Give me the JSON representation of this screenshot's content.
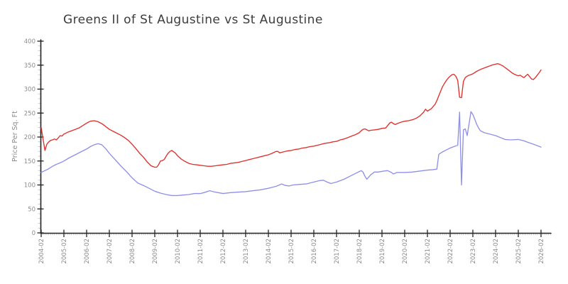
{
  "title": "Greens II of St Augustine vs St Augustine",
  "colors": {
    "background": "#ffffff",
    "axis": "#222222",
    "tick_label": "#8c8c8c",
    "minor_tick": "#c2c2c2",
    "title": "#3c3c3c",
    "red_series": "#e0302d",
    "blue_series": "#8f90e8"
  },
  "chart_data": {
    "type": "line",
    "title": "Greens II of St Augustine vs St Augustine",
    "xlabel": "",
    "ylabel": "Price Per Sq. Ft",
    "grid": false,
    "legend": "none",
    "style": "xkcd-sketch",
    "ylim": [
      0,
      400
    ],
    "y_ticks": [
      0,
      50,
      100,
      150,
      200,
      250,
      300,
      350,
      400
    ],
    "x_unit": "months since 2004-02",
    "x_tick_interval_months": 12,
    "x_tick_labels": [
      "2004-02",
      "2005-02",
      "2006-02",
      "2007-02",
      "2008-02",
      "2009-02",
      "2010-02",
      "2011-02",
      "2012-02",
      "2013-02",
      "2014-02",
      "2015-02",
      "2016-02",
      "2017-02",
      "2018-02",
      "2019-02",
      "2020-02",
      "2021-02",
      "2022-02",
      "2023-02",
      "2024-02",
      "2025-02",
      "2026-02"
    ],
    "series": [
      {
        "name": "red",
        "color": "#e0302d",
        "points": [
          [
            0,
            220
          ],
          [
            1,
            195
          ],
          [
            2,
            172
          ],
          [
            3,
            185
          ],
          [
            4,
            190
          ],
          [
            5,
            193
          ],
          [
            6,
            194
          ],
          [
            7,
            196
          ],
          [
            8,
            194
          ],
          [
            9,
            198
          ],
          [
            10,
            203
          ],
          [
            11,
            202
          ],
          [
            12,
            206
          ],
          [
            14,
            210
          ],
          [
            16,
            213
          ],
          [
            18,
            216
          ],
          [
            20,
            219
          ],
          [
            22,
            224
          ],
          [
            24,
            229
          ],
          [
            26,
            233
          ],
          [
            28,
            234
          ],
          [
            30,
            232
          ],
          [
            32,
            228
          ],
          [
            34,
            222
          ],
          [
            36,
            216
          ],
          [
            38,
            212
          ],
          [
            40,
            208
          ],
          [
            42,
            204
          ],
          [
            44,
            199
          ],
          [
            46,
            193
          ],
          [
            48,
            185
          ],
          [
            50,
            176
          ],
          [
            52,
            166
          ],
          [
            54,
            158
          ],
          [
            56,
            148
          ],
          [
            58,
            140
          ],
          [
            60,
            137
          ],
          [
            61,
            137
          ],
          [
            62,
            142
          ],
          [
            63,
            150
          ],
          [
            64,
            151
          ],
          [
            65,
            153
          ],
          [
            66,
            160
          ],
          [
            67,
            166
          ],
          [
            68,
            170
          ],
          [
            69,
            172
          ],
          [
            70,
            169
          ],
          [
            71,
            166
          ],
          [
            72,
            161
          ],
          [
            74,
            154
          ],
          [
            76,
            149
          ],
          [
            78,
            145
          ],
          [
            80,
            143
          ],
          [
            82,
            142
          ],
          [
            84,
            141
          ],
          [
            86,
            140
          ],
          [
            88,
            139
          ],
          [
            90,
            139
          ],
          [
            92,
            140
          ],
          [
            94,
            141
          ],
          [
            96,
            142
          ],
          [
            98,
            143
          ],
          [
            100,
            145
          ],
          [
            102,
            146
          ],
          [
            104,
            147
          ],
          [
            106,
            149
          ],
          [
            108,
            151
          ],
          [
            110,
            153
          ],
          [
            112,
            155
          ],
          [
            114,
            157
          ],
          [
            116,
            159
          ],
          [
            118,
            161
          ],
          [
            120,
            163
          ],
          [
            122,
            166
          ],
          [
            124,
            170
          ],
          [
            125,
            170
          ],
          [
            126,
            167
          ],
          [
            128,
            169
          ],
          [
            130,
            171
          ],
          [
            132,
            172
          ],
          [
            134,
            174
          ],
          [
            136,
            175
          ],
          [
            138,
            177
          ],
          [
            140,
            178
          ],
          [
            142,
            180
          ],
          [
            144,
            181
          ],
          [
            146,
            183
          ],
          [
            148,
            185
          ],
          [
            150,
            187
          ],
          [
            152,
            188
          ],
          [
            154,
            190
          ],
          [
            156,
            191
          ],
          [
            158,
            194
          ],
          [
            160,
            196
          ],
          [
            162,
            199
          ],
          [
            164,
            202
          ],
          [
            166,
            205
          ],
          [
            168,
            209
          ],
          [
            169,
            213
          ],
          [
            170,
            216
          ],
          [
            171,
            217
          ],
          [
            172,
            215
          ],
          [
            173,
            213
          ],
          [
            174,
            214
          ],
          [
            176,
            215
          ],
          [
            178,
            216
          ],
          [
            180,
            218
          ],
          [
            182,
            219
          ],
          [
            183,
            224
          ],
          [
            184,
            229
          ],
          [
            185,
            231
          ],
          [
            186,
            228
          ],
          [
            187,
            226
          ],
          [
            188,
            228
          ],
          [
            190,
            231
          ],
          [
            192,
            233
          ],
          [
            194,
            234
          ],
          [
            196,
            236
          ],
          [
            198,
            239
          ],
          [
            200,
            244
          ],
          [
            202,
            252
          ],
          [
            203,
            258
          ],
          [
            204,
            254
          ],
          [
            206,
            259
          ],
          [
            208,
            268
          ],
          [
            209,
            276
          ],
          [
            210,
            286
          ],
          [
            211,
            296
          ],
          [
            212,
            305
          ],
          [
            213,
            312
          ],
          [
            214,
            318
          ],
          [
            215,
            323
          ],
          [
            216,
            327
          ],
          [
            217,
            330
          ],
          [
            218,
            331
          ],
          [
            219,
            327
          ],
          [
            220,
            318
          ],
          [
            221,
            283
          ],
          [
            222,
            282
          ],
          [
            223,
            316
          ],
          [
            224,
            324
          ],
          [
            225,
            327
          ],
          [
            226,
            329
          ],
          [
            227,
            330
          ],
          [
            228,
            332
          ],
          [
            230,
            337
          ],
          [
            232,
            341
          ],
          [
            234,
            344
          ],
          [
            236,
            347
          ],
          [
            238,
            350
          ],
          [
            240,
            352
          ],
          [
            241,
            353
          ],
          [
            242,
            352
          ],
          [
            243,
            350
          ],
          [
            244,
            348
          ],
          [
            245,
            345
          ],
          [
            246,
            342
          ],
          [
            247,
            339
          ],
          [
            248,
            336
          ],
          [
            249,
            333
          ],
          [
            250,
            331
          ],
          [
            251,
            329
          ],
          [
            252,
            328
          ],
          [
            253,
            329
          ],
          [
            254,
            326
          ],
          [
            255,
            324
          ],
          [
            256,
            328
          ],
          [
            257,
            331
          ],
          [
            258,
            326
          ],
          [
            259,
            321
          ],
          [
            260,
            320
          ],
          [
            261,
            324
          ],
          [
            262,
            329
          ],
          [
            263,
            334
          ],
          [
            264,
            340
          ]
        ]
      },
      {
        "name": "blue",
        "color": "#8f90e8",
        "points": [
          [
            0,
            126
          ],
          [
            2,
            130
          ],
          [
            4,
            134
          ],
          [
            6,
            139
          ],
          [
            8,
            143
          ],
          [
            10,
            146
          ],
          [
            12,
            150
          ],
          [
            15,
            157
          ],
          [
            18,
            163
          ],
          [
            21,
            169
          ],
          [
            24,
            175
          ],
          [
            26,
            180
          ],
          [
            28,
            184
          ],
          [
            30,
            186
          ],
          [
            32,
            184
          ],
          [
            34,
            176
          ],
          [
            36,
            166
          ],
          [
            39,
            153
          ],
          [
            42,
            140
          ],
          [
            45,
            128
          ],
          [
            48,
            115
          ],
          [
            51,
            104
          ],
          [
            54,
            99
          ],
          [
            57,
            93
          ],
          [
            60,
            87
          ],
          [
            63,
            83
          ],
          [
            66,
            80
          ],
          [
            69,
            78
          ],
          [
            72,
            78
          ],
          [
            75,
            79
          ],
          [
            78,
            80
          ],
          [
            81,
            82
          ],
          [
            84,
            82
          ],
          [
            86,
            84
          ],
          [
            89,
            88
          ],
          [
            92,
            85
          ],
          [
            96,
            82
          ],
          [
            100,
            84
          ],
          [
            104,
            85
          ],
          [
            108,
            86
          ],
          [
            112,
            88
          ],
          [
            116,
            90
          ],
          [
            120,
            93
          ],
          [
            124,
            97
          ],
          [
            127,
            102
          ],
          [
            129,
            99
          ],
          [
            131,
            98
          ],
          [
            133,
            100
          ],
          [
            136,
            101
          ],
          [
            140,
            102
          ],
          [
            144,
            106
          ],
          [
            147,
            109
          ],
          [
            149,
            110
          ],
          [
            151,
            106
          ],
          [
            153,
            103
          ],
          [
            156,
            106
          ],
          [
            160,
            112
          ],
          [
            163,
            118
          ],
          [
            166,
            124
          ],
          [
            168,
            128
          ],
          [
            169,
            130
          ],
          [
            170,
            127
          ],
          [
            171,
            118
          ],
          [
            172,
            112
          ],
          [
            174,
            121
          ],
          [
            176,
            127
          ],
          [
            178,
            127
          ],
          [
            181,
            129
          ],
          [
            183,
            130
          ],
          [
            185,
            126
          ],
          [
            186,
            123
          ],
          [
            188,
            126
          ],
          [
            192,
            126
          ],
          [
            196,
            127
          ],
          [
            200,
            129
          ],
          [
            204,
            131
          ],
          [
            207,
            132
          ],
          [
            209,
            133
          ],
          [
            210,
            164
          ],
          [
            212,
            169
          ],
          [
            214,
            173
          ],
          [
            216,
            177
          ],
          [
            218,
            180
          ],
          [
            220,
            183
          ],
          [
            221,
            252
          ],
          [
            222,
            100
          ],
          [
            223,
            215
          ],
          [
            224,
            217
          ],
          [
            225,
            203
          ],
          [
            226,
            228
          ],
          [
            227,
            253
          ],
          [
            228,
            247
          ],
          [
            229,
            237
          ],
          [
            230,
            227
          ],
          [
            231,
            219
          ],
          [
            232,
            213
          ],
          [
            234,
            209
          ],
          [
            237,
            206
          ],
          [
            240,
            203
          ],
          [
            243,
            198
          ],
          [
            245,
            195
          ],
          [
            248,
            194
          ],
          [
            252,
            195
          ],
          [
            255,
            192
          ],
          [
            257,
            189
          ],
          [
            260,
            185
          ],
          [
            262,
            182
          ],
          [
            264,
            179
          ]
        ]
      }
    ]
  }
}
